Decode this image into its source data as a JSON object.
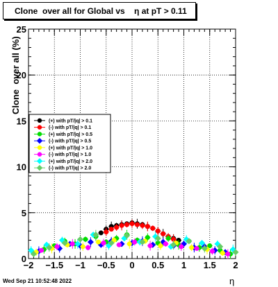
{
  "header": {
    "title": "Clone  over all for Global vs    η at pT > 0.11"
  },
  "footer": {
    "timestamp": "Wed Sep 21 10:52:48 2022"
  },
  "chart_data": {
    "type": "scatter",
    "title": "Clone  over all for Global vs    η at pT > 0.11",
    "xlabel": "η",
    "ylabel": "Clone  over all (%)",
    "xlim": [
      -2,
      2
    ],
    "ylim": [
      0,
      25
    ],
    "xticks": [
      "−2",
      "−1.5",
      "−1",
      "−0.5",
      "0",
      "0.5",
      "1",
      "1.5",
      "2"
    ],
    "yticks": [
      "0",
      "5",
      "10",
      "15",
      "20",
      "25"
    ],
    "grid": true,
    "legend_position": "middle-left",
    "series": [
      {
        "name": "(+) with pT/|q| > 0.1",
        "color": "#000000",
        "marker": "circle",
        "x": [
          -0.6,
          -0.5,
          -0.4,
          -0.3,
          -0.2,
          -0.1,
          0.0,
          0.1,
          0.2,
          0.3,
          0.4,
          0.5,
          0.6,
          0.7,
          0.8,
          0.9
        ],
        "y": [
          2.8,
          3.2,
          3.5,
          3.6,
          3.7,
          3.8,
          3.9,
          3.8,
          3.7,
          3.5,
          3.3,
          3.0,
          2.7,
          2.4,
          2.2,
          2.0
        ]
      },
      {
        "name": "(-) with pT/|q| > 0.1",
        "color": "#ff0000",
        "marker": "circle",
        "x": [
          -0.5,
          -0.4,
          -0.3,
          -0.2,
          -0.1,
          0.0,
          0.1,
          0.2,
          0.3,
          0.4,
          0.5,
          0.6,
          0.7,
          0.8
        ],
        "y": [
          2.9,
          3.2,
          3.4,
          3.6,
          3.7,
          3.8,
          3.7,
          3.6,
          3.5,
          3.3,
          3.0,
          2.7,
          2.4,
          2.1
        ]
      },
      {
        "name": "(+) with pT/|q| > 0.5",
        "color": "#00dd00",
        "marker": "circle",
        "x": [
          -1.9,
          -1.7,
          -1.5,
          -1.3,
          -1.1,
          -0.9,
          -0.7,
          -0.5,
          -0.3,
          -0.1,
          0.1,
          0.3,
          0.5,
          0.7,
          0.9,
          1.1,
          1.3,
          1.5,
          1.7,
          1.9
        ],
        "y": [
          0.6,
          1.0,
          1.4,
          1.9,
          1.6,
          2.1,
          2.4,
          1.8,
          2.2,
          2.6,
          2.0,
          2.3,
          1.7,
          2.2,
          1.5,
          1.9,
          1.2,
          1.4,
          0.9,
          0.5
        ]
      },
      {
        "name": "(-) with pT/|q| > 0.5",
        "color": "#0000ff",
        "marker": "diamond",
        "x": [
          -1.8,
          -1.6,
          -1.4,
          -1.2,
          -1.0,
          -0.8,
          -0.6,
          -0.4,
          -0.2,
          0.0,
          0.2,
          0.4,
          0.6,
          0.8,
          1.0,
          1.2,
          1.4,
          1.6,
          1.8
        ],
        "y": [
          0.8,
          1.2,
          1.1,
          1.6,
          1.4,
          1.8,
          1.5,
          1.9,
          1.6,
          1.7,
          1.9,
          1.5,
          1.8,
          1.4,
          1.6,
          1.2,
          1.3,
          0.9,
          0.7
        ]
      },
      {
        "name": "(+) with pT/|q| > 1.0",
        "color": "#ffff00",
        "marker": "circle",
        "x": [
          -1.85,
          -1.55,
          -1.25,
          -0.95,
          -0.65,
          -0.35,
          -0.05,
          0.25,
          0.55,
          0.85,
          1.15,
          1.45,
          1.75
        ],
        "y": [
          0.7,
          1.1,
          1.5,
          1.3,
          1.8,
          2.0,
          1.6,
          1.9,
          1.4,
          1.7,
          1.2,
          1.0,
          0.6
        ]
      },
      {
        "name": "(-) with pT/|q| > 1.0",
        "color": "#ff00ff",
        "marker": "circle",
        "x": [
          -1.75,
          -1.45,
          -1.15,
          -0.85,
          -0.55,
          -0.25,
          0.05,
          0.35,
          0.65,
          0.95,
          1.25,
          1.55,
          1.85
        ],
        "y": [
          0.9,
          1.3,
          1.6,
          1.2,
          1.7,
          1.5,
          1.8,
          1.4,
          1.6,
          1.3,
          1.1,
          0.8,
          0.5
        ]
      },
      {
        "name": "(+) with pT/|q| > 2.0",
        "color": "#00ffff",
        "marker": "diamond",
        "x": [
          -1.95,
          -1.65,
          -1.35,
          -1.05,
          -0.75,
          -0.45,
          -0.15,
          0.15,
          0.45,
          0.75,
          1.05,
          1.35,
          1.65,
          1.95
        ],
        "y": [
          0.9,
          1.5,
          2.0,
          1.6,
          2.6,
          1.4,
          2.2,
          1.8,
          2.4,
          1.3,
          2.1,
          1.7,
          1.6,
          1.0
        ]
      },
      {
        "name": "(-) with pT/|q| > 2.0",
        "color": "#66cc66",
        "marker": "diamond",
        "x": [
          -1.9,
          -1.6,
          -1.3,
          -1.0,
          -0.7,
          -0.4,
          -0.1,
          0.2,
          0.5,
          0.8,
          1.1,
          1.4,
          1.7,
          2.0
        ],
        "y": [
          0.5,
          1.2,
          1.7,
          2.1,
          2.6,
          1.7,
          2.5,
          1.8,
          2.2,
          1.5,
          1.9,
          1.1,
          1.3,
          0.7
        ]
      }
    ]
  }
}
